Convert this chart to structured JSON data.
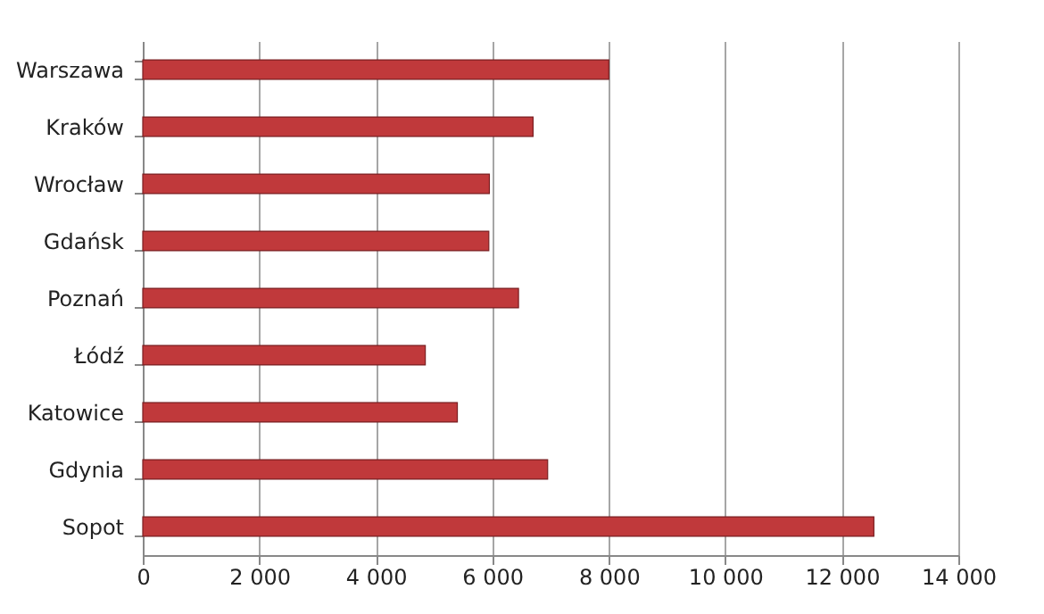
{
  "chart_data": {
    "type": "bar",
    "orientation": "horizontal",
    "categories": [
      "Warszawa",
      "Kraków",
      "Wrocław",
      "Gdańsk",
      "Poznań",
      "Łódź",
      "Katowice",
      "Gdynia",
      "Sopot"
    ],
    "values": [
      8000,
      6700,
      5950,
      5940,
      6450,
      4850,
      5400,
      6950,
      12550
    ],
    "color": "#c0393b",
    "xlim": [
      0,
      14000
    ],
    "xticks": [
      0,
      {
        "value": 2000,
        "label": "2 000"
      },
      {
        "value": 4000,
        "label": "4 000"
      },
      {
        "value": 6000,
        "label": "6 000"
      },
      {
        "value": 8000,
        "label": "8 000"
      },
      {
        "value": 10000,
        "label": "10 000"
      },
      {
        "value": 12000,
        "label": "12 000"
      },
      {
        "value": 14000,
        "label": "14 000"
      }
    ],
    "grid": "x"
  }
}
